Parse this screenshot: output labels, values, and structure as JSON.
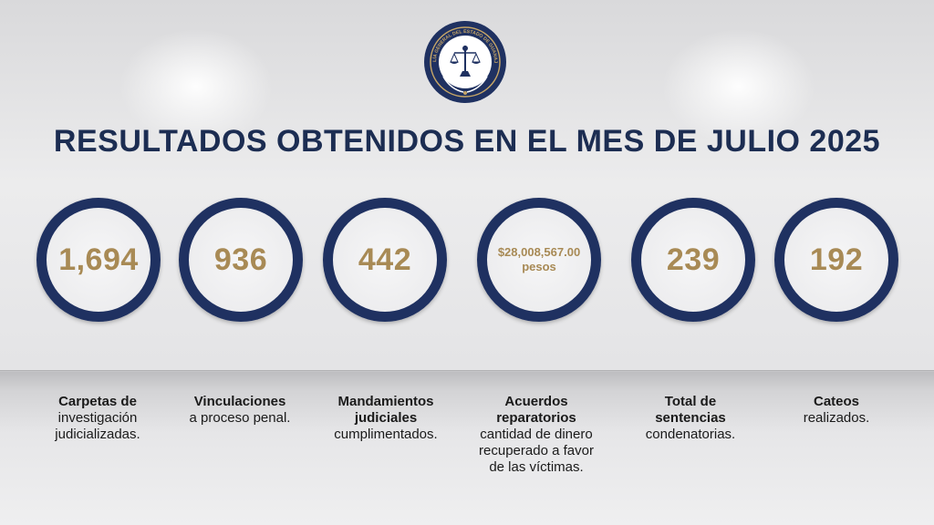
{
  "title": "RESULTADOS OBTENIDOS EN EL MES DE JULIO 2025",
  "logo": {
    "icon": "justice-seal-icon",
    "text": "FISCALÍA GENERAL DEL ESTADO DE GUANAJUATO",
    "colors": {
      "ring": "#1f3161",
      "accent": "#c6a667"
    }
  },
  "stats": [
    {
      "value": "1,694",
      "bold": "Carpetas de",
      "rest": [
        "investigación",
        "judicializadas."
      ]
    },
    {
      "value": "936",
      "bold": "Vinculaciones",
      "rest": [
        "a proceso penal."
      ]
    },
    {
      "value": "442",
      "bold": "Mandamientos judiciales",
      "rest": [
        "cumplimentados."
      ]
    },
    {
      "value": "$28,008,567.00",
      "value2": "pesos",
      "bold": "Acuerdos reparatorios",
      "rest": [
        "cantidad de dinero",
        "recuperado a favor",
        "de las víctimas."
      ]
    },
    {
      "value": "239",
      "bold": "Total de sentencias",
      "rest": [
        "condenatorias."
      ]
    },
    {
      "value": "192",
      "bold": "Cateos",
      "rest": [
        "realizados."
      ]
    }
  ],
  "colors": {
    "circle": "#1f3161",
    "value": "#a88a55",
    "title": "#1c2d52"
  }
}
